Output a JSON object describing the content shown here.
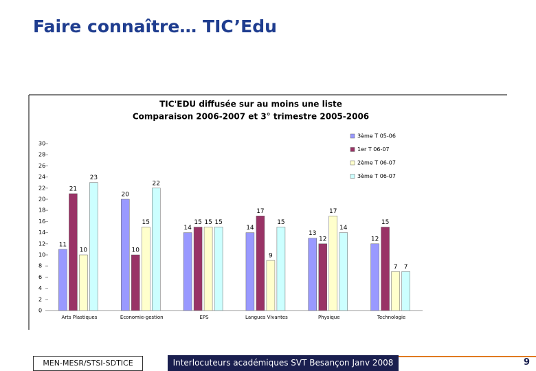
{
  "slide": {
    "title": "Faire connaître… TIC’Edu",
    "footer_left": "MEN-MESR/STSI-SDTICE",
    "footer_center": "Interlocuteurs académiques SVT Besançon Janv 2008",
    "page_number": "9"
  },
  "chart_data": {
    "type": "bar",
    "title": "TIC'EDU diffusée sur au moins une liste",
    "subtitle": "Comparaison  2006-2007 et 3° trimestre 2005-2006",
    "categories": [
      "Arts Plastiques",
      "Economie-gestion",
      "EPS",
      "Langues Vivantes",
      "Physique",
      "Technologie"
    ],
    "series": [
      {
        "name": "3ème T 05-06",
        "color": "#9999ff",
        "values": [
          11,
          20,
          14,
          14,
          13,
          12
        ]
      },
      {
        "name": "1er T 06-07",
        "color": "#993366",
        "values": [
          21,
          10,
          15,
          17,
          12,
          15
        ]
      },
      {
        "name": "2ème T 06-07",
        "color": "#ffffcc",
        "values": [
          10,
          15,
          15,
          9,
          17,
          7
        ]
      },
      {
        "name": "3ème T 06-07",
        "color": "#ccffff",
        "values": [
          23,
          22,
          15,
          15,
          14,
          7
        ]
      }
    ],
    "ylim": [
      0,
      30
    ],
    "yticks": [
      0,
      2,
      4,
      6,
      8,
      10,
      12,
      14,
      16,
      18,
      20,
      22,
      24,
      26,
      28,
      30
    ],
    "grid": false,
    "legend": "top-right"
  }
}
